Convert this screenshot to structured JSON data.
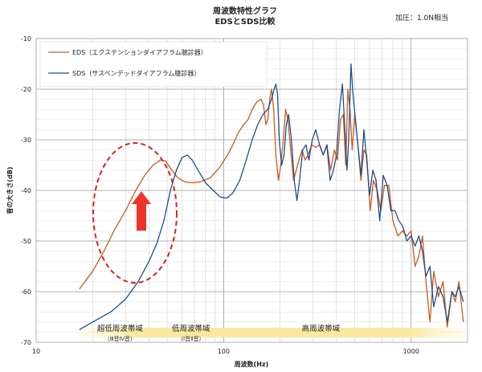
{
  "chart_data": {
    "type": "line",
    "title_line1": "周波数特性グラフ",
    "title_line2": "EDSとSDS比較",
    "note": "加圧：1.0N相当",
    "xlabel": "周波数(Hz)",
    "ylabel": "音の大きさ(dB)",
    "x_scale": "log",
    "xlim": [
      10,
      2000
    ],
    "ylim": [
      -70,
      -10
    ],
    "x_ticks": [
      10,
      100,
      1000
    ],
    "y_ticks": [
      -10,
      -20,
      -30,
      -40,
      -50,
      -60,
      -70
    ],
    "grid": true,
    "legend_position": "top-left",
    "series": [
      {
        "name": "EDS（エクステンションダイアフラム聴診器）",
        "color": "#cc5a1e",
        "points": [
          [
            17,
            -59.5
          ],
          [
            20,
            -56
          ],
          [
            23,
            -52
          ],
          [
            26,
            -48
          ],
          [
            30,
            -44
          ],
          [
            34,
            -40
          ],
          [
            38,
            -37
          ],
          [
            42,
            -35
          ],
          [
            46,
            -34
          ],
          [
            49,
            -34.2
          ],
          [
            53,
            -36
          ],
          [
            57,
            -37.5
          ],
          [
            62,
            -38.3
          ],
          [
            68,
            -38.5
          ],
          [
            75,
            -38.3
          ],
          [
            85,
            -37.5
          ],
          [
            95,
            -35.5
          ],
          [
            105,
            -33
          ],
          [
            112,
            -31
          ],
          [
            120,
            -28.5
          ],
          [
            128,
            -27
          ],
          [
            135,
            -26
          ],
          [
            142,
            -24
          ],
          [
            150,
            -22.5
          ],
          [
            158,
            -22
          ],
          [
            163,
            -23
          ],
          [
            168,
            -27
          ],
          [
            172,
            -26
          ],
          [
            176,
            -22
          ],
          [
            180,
            -20
          ],
          [
            185,
            -24
          ],
          [
            190,
            -33
          ],
          [
            196,
            -38
          ],
          [
            202,
            -35
          ],
          [
            208,
            -30
          ],
          [
            214,
            -24
          ],
          [
            220,
            -26
          ],
          [
            228,
            -32
          ],
          [
            236,
            -38
          ],
          [
            244,
            -36
          ],
          [
            252,
            -34
          ],
          [
            262,
            -32
          ],
          [
            272,
            -34
          ],
          [
            282,
            -33
          ],
          [
            295,
            -31
          ],
          [
            310,
            -31.5
          ],
          [
            325,
            -31
          ],
          [
            340,
            -33
          ],
          [
            356,
            -31
          ],
          [
            372,
            -36
          ],
          [
            390,
            -32
          ],
          [
            405,
            -34
          ],
          [
            420,
            -26
          ],
          [
            435,
            -25
          ],
          [
            448,
            -35
          ],
          [
            460,
            -20
          ],
          [
            472,
            -24
          ],
          [
            485,
            -32
          ],
          [
            500,
            -25
          ],
          [
            520,
            -31
          ],
          [
            540,
            -38
          ],
          [
            560,
            -32
          ],
          [
            580,
            -33
          ],
          [
            605,
            -44
          ],
          [
            630,
            -38
          ],
          [
            660,
            -40
          ],
          [
            690,
            -44
          ],
          [
            720,
            -39
          ],
          [
            760,
            -39
          ],
          [
            800,
            -46
          ],
          [
            850,
            -49
          ],
          [
            900,
            -48
          ],
          [
            950,
            -49
          ],
          [
            1000,
            -48
          ],
          [
            1050,
            -55
          ],
          [
            1100,
            -53
          ],
          [
            1150,
            -49
          ],
          [
            1200,
            -58
          ],
          [
            1260,
            -66
          ],
          [
            1320,
            -56
          ],
          [
            1400,
            -61
          ],
          [
            1480,
            -58
          ],
          [
            1560,
            -67
          ],
          [
            1650,
            -60
          ],
          [
            1720,
            -62
          ],
          [
            1800,
            -58
          ],
          [
            1900,
            -66
          ]
        ]
      },
      {
        "name": "SDS（サスペンデッドダイアフラム聴診器）",
        "color": "#1f4e8c",
        "points": [
          [
            17,
            -67.5
          ],
          [
            20,
            -66
          ],
          [
            25,
            -64
          ],
          [
            30,
            -61.5
          ],
          [
            35,
            -58
          ],
          [
            40,
            -54
          ],
          [
            44,
            -50.5
          ],
          [
            48,
            -46
          ],
          [
            52,
            -40
          ],
          [
            56,
            -36
          ],
          [
            60,
            -33.5
          ],
          [
            64,
            -33
          ],
          [
            68,
            -34
          ],
          [
            73,
            -36
          ],
          [
            80,
            -38.5
          ],
          [
            88,
            -40
          ],
          [
            96,
            -41.3
          ],
          [
            104,
            -41.5
          ],
          [
            112,
            -40.5
          ],
          [
            122,
            -38
          ],
          [
            132,
            -34
          ],
          [
            142,
            -30
          ],
          [
            152,
            -27
          ],
          [
            162,
            -25
          ],
          [
            172,
            -24
          ],
          [
            180,
            -22
          ],
          [
            186,
            -20
          ],
          [
            190,
            -19
          ],
          [
            194,
            -21
          ],
          [
            198,
            -30
          ],
          [
            204,
            -35
          ],
          [
            210,
            -33
          ],
          [
            216,
            -27
          ],
          [
            222,
            -25
          ],
          [
            230,
            -30
          ],
          [
            238,
            -38
          ],
          [
            246,
            -42
          ],
          [
            254,
            -38
          ],
          [
            264,
            -32
          ],
          [
            275,
            -31
          ],
          [
            285,
            -34
          ],
          [
            297,
            -30
          ],
          [
            310,
            -28
          ],
          [
            325,
            -31
          ],
          [
            340,
            -33
          ],
          [
            355,
            -31
          ],
          [
            370,
            -38
          ],
          [
            385,
            -36
          ],
          [
            400,
            -33
          ],
          [
            415,
            -24
          ],
          [
            430,
            -19
          ],
          [
            442,
            -27
          ],
          [
            455,
            -36
          ],
          [
            465,
            -30
          ],
          [
            478,
            -15
          ],
          [
            490,
            -21
          ],
          [
            505,
            -26
          ],
          [
            520,
            -31
          ],
          [
            540,
            -37
          ],
          [
            560,
            -28
          ],
          [
            580,
            -34
          ],
          [
            600,
            -41
          ],
          [
            625,
            -36
          ],
          [
            650,
            -38
          ],
          [
            680,
            -46
          ],
          [
            710,
            -37
          ],
          [
            745,
            -39
          ],
          [
            780,
            -44
          ],
          [
            820,
            -44
          ],
          [
            860,
            -46
          ],
          [
            900,
            -47
          ],
          [
            950,
            -50
          ],
          [
            1000,
            -49
          ],
          [
            1050,
            -51
          ],
          [
            1100,
            -49
          ],
          [
            1150,
            -52
          ],
          [
            1200,
            -57
          ],
          [
            1260,
            -55
          ],
          [
            1320,
            -63
          ],
          [
            1400,
            -59
          ],
          [
            1480,
            -61
          ],
          [
            1560,
            -66
          ],
          [
            1650,
            -60
          ],
          [
            1720,
            -61
          ],
          [
            1800,
            -59
          ],
          [
            1900,
            -62
          ]
        ]
      }
    ],
    "bands": [
      {
        "label": "超低周波帯域",
        "sub": "（Ⅲ音Ⅳ音）",
        "x": 28
      },
      {
        "label": "低周波帯域",
        "sub": "（Ⅰ音Ⅱ音）",
        "x": 67
      },
      {
        "label": "高周波帯域",
        "sub": "",
        "x": 330
      }
    ]
  }
}
